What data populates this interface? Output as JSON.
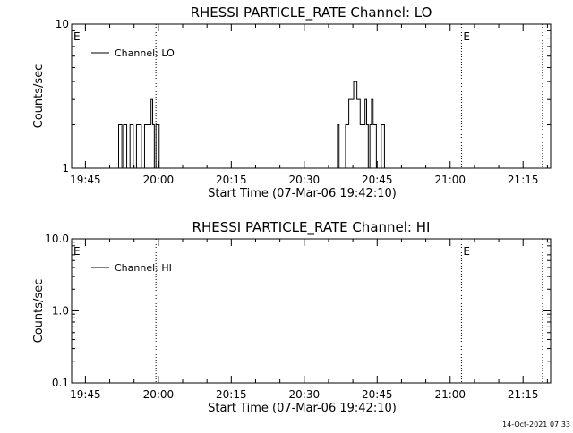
{
  "chart_data": [
    {
      "type": "line",
      "title": "RHESSI PARTICLE_RATE Channel: LO",
      "xlabel": "Start Time (07-Mar-06 19:42:10)",
      "ylabel": "Counts/sec",
      "xscale": "time",
      "yscale": "log",
      "xlim": [
        "19:42:10",
        "21:20:40"
      ],
      "ylim": [
        1,
        10
      ],
      "x_ticks": [
        "19:45",
        "20:00",
        "20:15",
        "20:30",
        "20:45",
        "21:00",
        "21:15"
      ],
      "y_ticks": [
        "1",
        "10"
      ],
      "legend": {
        "position": "top-left",
        "entries": [
          "Channel: LO"
        ]
      },
      "series": [
        {
          "name": "Channel: LO",
          "x": [
            "19:51:30",
            "19:51:50",
            "19:52:10",
            "19:52:30",
            "19:52:50",
            "19:53:10",
            "19:53:30",
            "19:53:50",
            "19:54:10",
            "19:54:30",
            "19:54:50",
            "19:55:10",
            "19:55:30",
            "19:55:50",
            "19:56:10",
            "19:56:30",
            "19:56:50",
            "19:57:10",
            "19:57:30",
            "19:57:50",
            "19:58:10",
            "19:58:30",
            "19:58:50",
            "19:59:10",
            "19:59:30",
            "19:59:50",
            "20:00:10",
            "20:00:30",
            "20:00:50",
            "20:01:10",
            "20:36:10",
            "20:36:30",
            "20:36:50",
            "20:37:10",
            "20:37:30",
            "20:37:50",
            "20:38:10",
            "20:38:30",
            "20:38:50",
            "20:39:10",
            "20:39:30",
            "20:39:50",
            "20:40:10",
            "20:40:30",
            "20:40:50",
            "20:41:10",
            "20:41:30",
            "20:41:50",
            "20:42:10",
            "20:42:30",
            "20:42:50",
            "20:43:10",
            "20:43:30",
            "20:43:50",
            "20:44:10",
            "20:44:30",
            "20:44:50",
            "20:45:10",
            "20:45:30",
            "20:45:50",
            "20:46:10",
            "20:46:30",
            "20:46:50",
            "20:47:10"
          ],
          "y": [
            1,
            2,
            2,
            1,
            2,
            2,
            1,
            1,
            2,
            2,
            1,
            1,
            2,
            2,
            2,
            1,
            1,
            2,
            2,
            2,
            2,
            3,
            2,
            1,
            2,
            2,
            1,
            1,
            1,
            1,
            1,
            1,
            2,
            1,
            1,
            1,
            1,
            2,
            2,
            3,
            3,
            3,
            4,
            4,
            3,
            3,
            2,
            2,
            2,
            3,
            2,
            1,
            2,
            3,
            2,
            2,
            1,
            1,
            1,
            2,
            2,
            1,
            1,
            1
          ]
        }
      ],
      "annotations": [
        {
          "text": "E",
          "x": "19:42:10"
        },
        {
          "text": "E",
          "x": "21:02:20"
        }
      ],
      "vertical_dotted_lines": [
        "19:59:30",
        "21:02:20",
        "21:19:00"
      ]
    },
    {
      "type": "line",
      "title": "RHESSI PARTICLE_RATE Channel: HI",
      "xlabel": "Start Time (07-Mar-06 19:42:10)",
      "ylabel": "Counts/sec",
      "xscale": "time",
      "yscale": "log",
      "xlim": [
        "19:42:10",
        "21:20:40"
      ],
      "ylim": [
        0.1,
        10
      ],
      "x_ticks": [
        "19:45",
        "20:00",
        "20:15",
        "20:30",
        "20:45",
        "21:00",
        "21:15"
      ],
      "y_ticks": [
        "0.1",
        "1.0",
        "10.0"
      ],
      "legend": {
        "position": "top-left",
        "entries": [
          "Channel: HI"
        ]
      },
      "series": [
        {
          "name": "Channel: HI",
          "x": [],
          "y": []
        }
      ],
      "annotations": [
        {
          "text": "E",
          "x": "19:42:10"
        },
        {
          "text": "E",
          "x": "21:02:20"
        }
      ],
      "vertical_dotted_lines": [
        "19:59:30",
        "21:02:20",
        "21:19:00"
      ]
    }
  ],
  "footer": {
    "timestamp": "14-Oct-2021 07:33"
  }
}
